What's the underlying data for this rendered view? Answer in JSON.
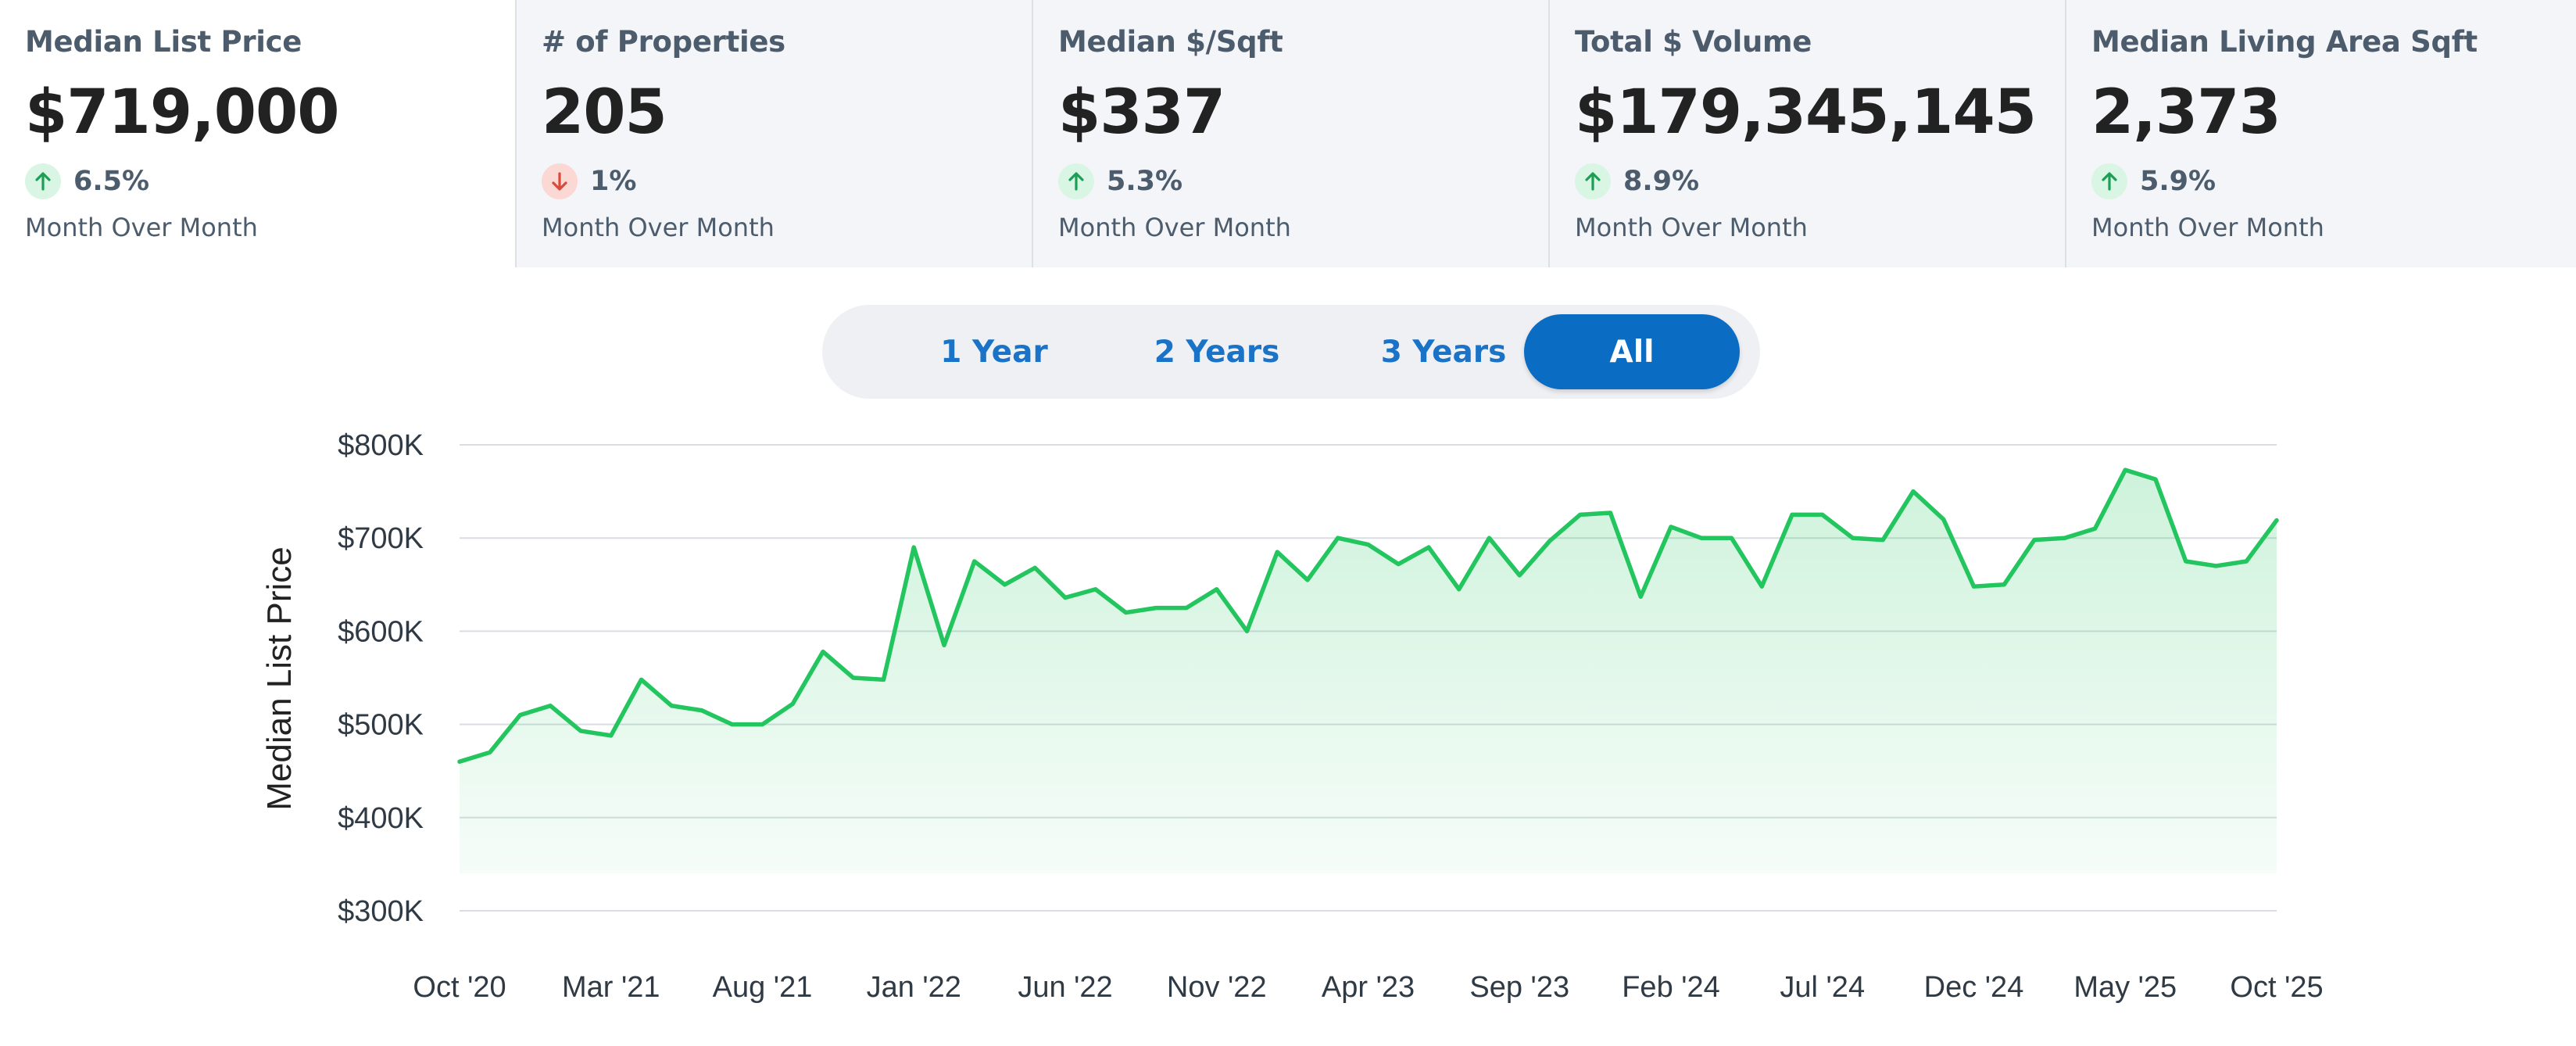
{
  "stats": [
    {
      "label": "Median List Price",
      "value": "$719,000",
      "direction": "up",
      "change": "6.5%",
      "period": "Month Over Month"
    },
    {
      "label": "# of Properties",
      "value": "205",
      "direction": "down",
      "change": "1%",
      "period": "Month Over Month"
    },
    {
      "label": "Median $/Sqft",
      "value": "$337",
      "direction": "up",
      "change": "5.3%",
      "period": "Month Over Month"
    },
    {
      "label": "Total $ Volume",
      "value": "$179,345,145",
      "direction": "up",
      "change": "8.9%",
      "period": "Month Over Month"
    },
    {
      "label": "Median Living Area Sqft",
      "value": "2,373",
      "direction": "up",
      "change": "5.9%",
      "period": "Month Over Month"
    }
  ],
  "range": {
    "options": [
      "1 Year",
      "2 Years",
      "3 Years",
      "All"
    ],
    "selected": "All"
  },
  "colors": {
    "accent": "#0b6cc4",
    "line": "#22c55e",
    "up": "#1a9f55",
    "down": "#d84a3a"
  },
  "chart_data": {
    "type": "area",
    "ylabel": "Median List Price",
    "ylim": [
      300000,
      800000
    ],
    "yticks": [
      300000,
      400000,
      500000,
      600000,
      700000,
      800000
    ],
    "ytick_labels": [
      "$300K",
      "$400K",
      "$500K",
      "$600K",
      "$700K",
      "$800K"
    ],
    "xtick_labels": [
      "Oct '20",
      "Mar '21",
      "Aug '21",
      "Jan '22",
      "Jun '22",
      "Nov '22",
      "Apr '23",
      "Sep '23",
      "Feb '24",
      "Jul '24",
      "Dec '24",
      "May '25",
      "Oct '25"
    ],
    "grid": true,
    "x": [
      "Oct '20",
      "Nov '20",
      "Dec '20",
      "Jan '21",
      "Feb '21",
      "Mar '21",
      "Apr '21",
      "May '21",
      "Jun '21",
      "Jul '21",
      "Aug '21",
      "Sep '21",
      "Oct '21",
      "Nov '21",
      "Dec '21",
      "Jan '22",
      "Feb '22",
      "Mar '22",
      "Apr '22",
      "May '22",
      "Jun '22",
      "Jul '22",
      "Aug '22",
      "Sep '22",
      "Oct '22",
      "Nov '22",
      "Dec '22",
      "Jan '23",
      "Feb '23",
      "Mar '23",
      "Apr '23",
      "May '23",
      "Jun '23",
      "Jul '23",
      "Aug '23",
      "Sep '23",
      "Oct '23",
      "Nov '23",
      "Dec '23",
      "Jan '24",
      "Feb '24",
      "Mar '24",
      "Apr '24",
      "May '24",
      "Jun '24",
      "Jul '24",
      "Aug '24",
      "Sep '24",
      "Oct '24",
      "Nov '24",
      "Dec '24",
      "Jan '25",
      "Feb '25",
      "Mar '25",
      "Apr '25",
      "May '25",
      "Jun '25",
      "Jul '25",
      "Aug '25",
      "Sep '25",
      "Oct '25"
    ],
    "series": [
      {
        "values": [
          460000,
          470000,
          510000,
          520000,
          493000,
          488000,
          548000,
          520000,
          515000,
          500000,
          500000,
          522000,
          578000,
          550000,
          548000,
          690000,
          585000,
          675000,
          650000,
          668000,
          636000,
          645000,
          620000,
          625000,
          625000,
          645000,
          600000,
          685000,
          655000,
          700000,
          693000,
          672000,
          690000,
          645000,
          700000,
          660000,
          697000,
          725000,
          727000,
          637000,
          712000,
          700000,
          700000,
          648000,
          725000,
          725000,
          700000,
          698000,
          750000,
          720000,
          648000,
          650000,
          698000,
          700000,
          710000,
          773000,
          763000,
          675000,
          670000,
          675000,
          719000
        ]
      }
    ]
  }
}
